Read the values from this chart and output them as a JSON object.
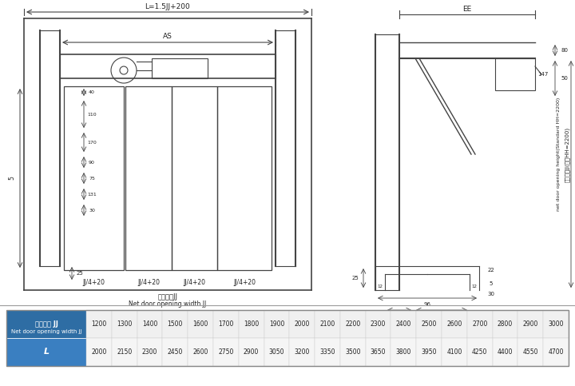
{
  "bg_color": "#ffffff",
  "border_color": "#555555",
  "table_header_bg": "#2e6da4",
  "table_header_color": "#ffffff",
  "table_row2_bg": "#3a7fc1",
  "table_body_bg": "#f5f5f5",
  "table_border": "#aaaaaa",
  "row1_label_zh": "净开门宽 JJ",
  "row1_label_en": "Net door opening width JJ",
  "row1_values": [
    "1200",
    "1300",
    "1400",
    "1500",
    "1600",
    "1700",
    "1800",
    "1900",
    "2000",
    "2100",
    "2200",
    "2300",
    "2400",
    "2500",
    "2600",
    "2700",
    "2800",
    "2900",
    "3000"
  ],
  "row2_label": "L",
  "row2_values": [
    "2000",
    "2150",
    "2300",
    "2450",
    "2600",
    "2750",
    "2900",
    "3050",
    "3200",
    "3350",
    "3500",
    "3650",
    "3800",
    "3950",
    "4100",
    "4250",
    "4400",
    "4550",
    "4700"
  ],
  "diagram_line_color": "#444444",
  "dim_line_color": "#555555",
  "text_color": "#222222"
}
